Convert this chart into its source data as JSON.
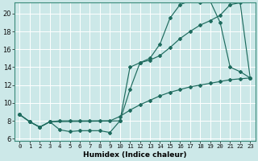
{
  "xlabel": "Humidex (Indice chaleur)",
  "bg_color": "#cce8e8",
  "line_color": "#1e6b5e",
  "grid_color": "#ffffff",
  "xlim": [
    -0.5,
    23.5
  ],
  "ylim": [
    5.8,
    21.2
  ],
  "yticks": [
    6,
    8,
    10,
    12,
    14,
    16,
    18,
    20
  ],
  "xticks": [
    0,
    1,
    2,
    3,
    4,
    5,
    6,
    7,
    8,
    9,
    10,
    11,
    12,
    13,
    14,
    15,
    16,
    17,
    18,
    19,
    20,
    21,
    22,
    23
  ],
  "line_a_x": [
    0,
    1,
    2,
    3,
    4,
    5,
    6,
    7,
    8,
    9,
    10,
    11,
    12,
    13,
    14,
    15,
    16,
    17,
    18,
    19,
    20,
    21,
    22,
    23
  ],
  "line_a_y": [
    8.7,
    7.9,
    7.3,
    7.9,
    7.0,
    6.8,
    6.9,
    6.9,
    6.9,
    6.7,
    8.0,
    11.5,
    14.5,
    15.0,
    16.6,
    19.5,
    21.0,
    21.4,
    21.2,
    21.4,
    19.0,
    14.0,
    13.5,
    12.8
  ],
  "line_b_x": [
    0,
    1,
    2,
    3,
    10,
    11,
    12,
    13,
    14,
    15,
    16,
    17,
    18,
    19,
    20,
    21,
    22,
    23
  ],
  "line_b_y": [
    8.7,
    7.9,
    7.3,
    7.9,
    8.0,
    14.0,
    14.5,
    14.8,
    15.3,
    16.2,
    17.2,
    18.0,
    18.7,
    19.2,
    19.8,
    21.0,
    21.2,
    12.8
  ],
  "line_c_x": [
    0,
    1,
    2,
    3,
    4,
    5,
    6,
    7,
    8,
    9,
    10,
    11,
    12,
    13,
    14,
    15,
    16,
    17,
    18,
    19,
    20,
    21,
    22,
    23
  ],
  "line_c_y": [
    8.7,
    7.9,
    7.3,
    7.9,
    8.0,
    8.0,
    8.0,
    8.0,
    8.0,
    8.0,
    8.5,
    9.2,
    9.8,
    10.3,
    10.8,
    11.2,
    11.5,
    11.8,
    12.0,
    12.2,
    12.4,
    12.6,
    12.7,
    12.8
  ],
  "xlabel_fontsize": 6.5,
  "tick_fontsize_x": 5.2,
  "tick_fontsize_y": 6.0
}
